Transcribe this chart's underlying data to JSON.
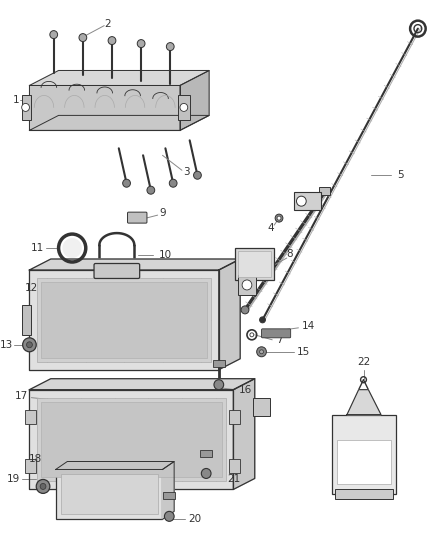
{
  "bg_color": "#ffffff",
  "dgray": "#333333",
  "lgray": "#aaaaaa",
  "mgray": "#888888",
  "lc": "#888888",
  "figsize": [
    4.38,
    5.33
  ],
  "dpi": 100
}
